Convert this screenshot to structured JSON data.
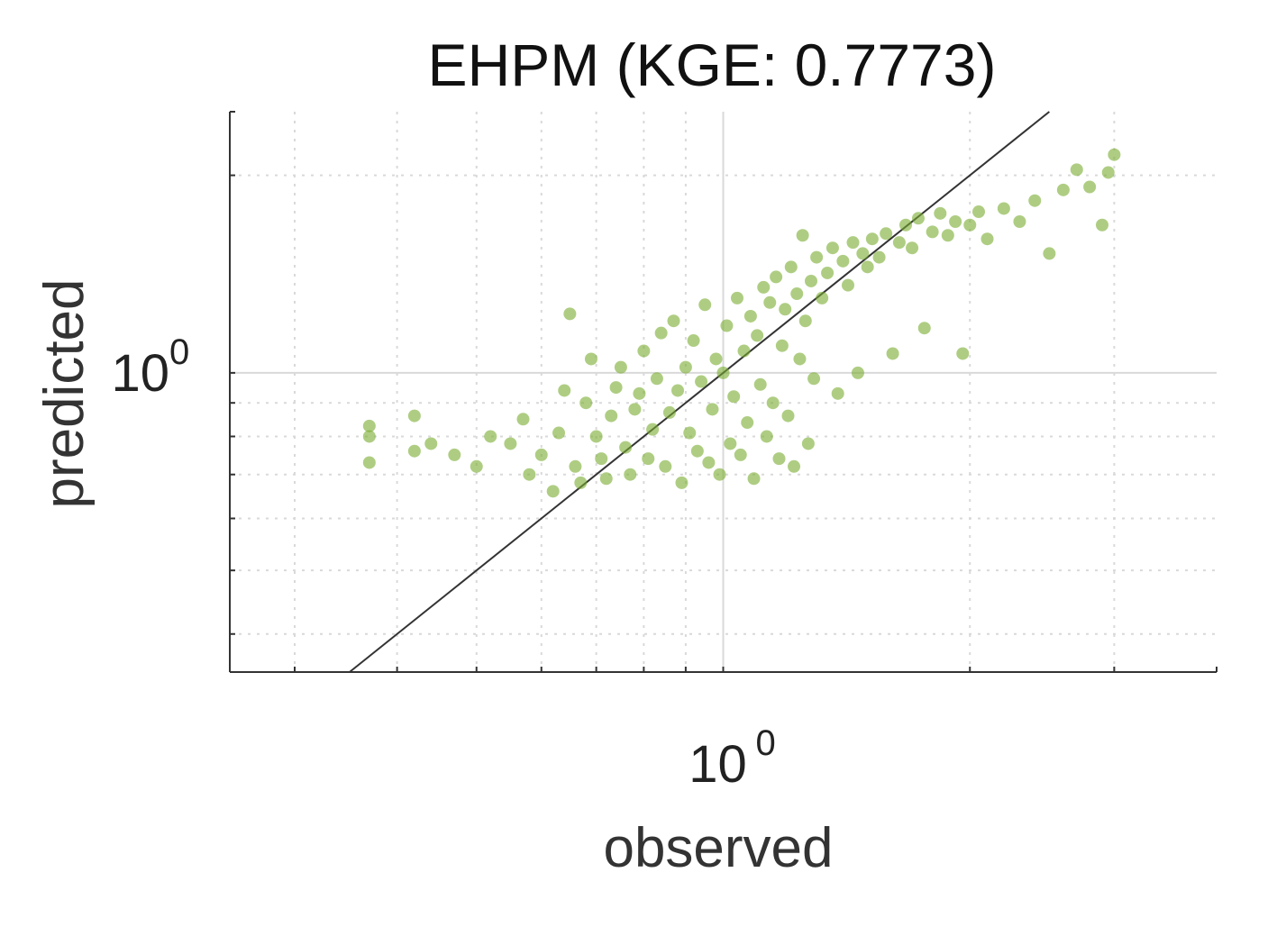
{
  "chart_data": {
    "type": "scatter",
    "title": "EHPM (KGE: 0.7773)",
    "xlabel": "observed",
    "ylabel": "predicted",
    "xscale": "log",
    "yscale": "log",
    "xlim": [
      0.25,
      4.0
    ],
    "ylim": [
      0.35,
      2.5
    ],
    "x_ticks": [
      {
        "base": "10",
        "exp": "0",
        "value": 1
      }
    ],
    "y_ticks": [
      {
        "base": "10",
        "exp": "0",
        "value": 1
      }
    ],
    "grid": true,
    "reference_line": "1:1",
    "colors": {
      "points": "#78ab2e",
      "line": "#333333",
      "grid": "#d9d9d9",
      "axis": "#333333"
    },
    "series": [
      {
        "values": [
          [
            0.37,
            0.83
          ],
          [
            0.37,
            0.8
          ],
          [
            0.37,
            0.73
          ],
          [
            0.42,
            0.86
          ],
          [
            0.42,
            0.76
          ],
          [
            0.44,
            0.78
          ],
          [
            0.47,
            0.75
          ],
          [
            0.5,
            0.72
          ],
          [
            0.52,
            0.8
          ],
          [
            0.55,
            0.78
          ],
          [
            0.57,
            0.85
          ],
          [
            0.58,
            0.7
          ],
          [
            0.6,
            0.75
          ],
          [
            0.62,
            0.66
          ],
          [
            0.63,
            0.81
          ],
          [
            0.64,
            0.94
          ],
          [
            0.65,
            1.23
          ],
          [
            0.66,
            0.72
          ],
          [
            0.67,
            0.68
          ],
          [
            0.68,
            0.9
          ],
          [
            0.69,
            1.05
          ],
          [
            0.7,
            0.8
          ],
          [
            0.71,
            0.74
          ],
          [
            0.72,
            0.69
          ],
          [
            0.73,
            0.86
          ],
          [
            0.74,
            0.95
          ],
          [
            0.75,
            1.02
          ],
          [
            0.76,
            0.77
          ],
          [
            0.77,
            0.7
          ],
          [
            0.78,
            0.88
          ],
          [
            0.79,
            0.93
          ],
          [
            0.8,
            1.08
          ],
          [
            0.81,
            0.74
          ],
          [
            0.82,
            0.82
          ],
          [
            0.83,
            0.98
          ],
          [
            0.84,
            1.15
          ],
          [
            0.85,
            0.72
          ],
          [
            0.86,
            0.87
          ],
          [
            0.87,
            1.2
          ],
          [
            0.88,
            0.94
          ],
          [
            0.89,
            0.68
          ],
          [
            0.9,
            1.02
          ],
          [
            0.91,
            0.81
          ],
          [
            0.92,
            1.12
          ],
          [
            0.93,
            0.76
          ],
          [
            0.94,
            0.97
          ],
          [
            0.95,
            1.27
          ],
          [
            0.96,
            0.73
          ],
          [
            0.97,
            0.88
          ],
          [
            0.98,
            1.05
          ],
          [
            0.99,
            0.7
          ],
          [
            1.0,
            1.0
          ],
          [
            1.01,
            1.18
          ],
          [
            1.02,
            0.78
          ],
          [
            1.03,
            0.92
          ],
          [
            1.04,
            1.3
          ],
          [
            1.05,
            0.75
          ],
          [
            1.06,
            1.08
          ],
          [
            1.07,
            0.84
          ],
          [
            1.08,
            1.22
          ],
          [
            1.09,
            0.69
          ],
          [
            1.1,
            1.14
          ],
          [
            1.11,
            0.96
          ],
          [
            1.12,
            1.35
          ],
          [
            1.13,
            0.8
          ],
          [
            1.14,
            1.28
          ],
          [
            1.15,
            0.9
          ],
          [
            1.16,
            1.4
          ],
          [
            1.17,
            0.74
          ],
          [
            1.18,
            1.1
          ],
          [
            1.19,
            1.25
          ],
          [
            1.2,
            0.86
          ],
          [
            1.21,
            1.45
          ],
          [
            1.22,
            0.72
          ],
          [
            1.23,
            1.32
          ],
          [
            1.24,
            1.05
          ],
          [
            1.25,
            1.62
          ],
          [
            1.26,
            1.2
          ],
          [
            1.27,
            0.78
          ],
          [
            1.28,
            1.38
          ],
          [
            1.29,
            0.98
          ],
          [
            1.3,
            1.5
          ],
          [
            1.32,
            1.3
          ],
          [
            1.34,
            1.42
          ],
          [
            1.36,
            1.55
          ],
          [
            1.38,
            0.93
          ],
          [
            1.4,
            1.48
          ],
          [
            1.42,
            1.36
          ],
          [
            1.44,
            1.58
          ],
          [
            1.46,
            1.0
          ],
          [
            1.48,
            1.52
          ],
          [
            1.5,
            1.45
          ],
          [
            1.52,
            1.6
          ],
          [
            1.55,
            1.5
          ],
          [
            1.58,
            1.63
          ],
          [
            1.61,
            1.07
          ],
          [
            1.64,
            1.58
          ],
          [
            1.67,
            1.68
          ],
          [
            1.7,
            1.55
          ],
          [
            1.73,
            1.72
          ],
          [
            1.76,
            1.17
          ],
          [
            1.8,
            1.64
          ],
          [
            1.84,
            1.75
          ],
          [
            1.88,
            1.62
          ],
          [
            1.92,
            1.7
          ],
          [
            1.96,
            1.07
          ],
          [
            2.0,
            1.68
          ],
          [
            2.05,
            1.76
          ],
          [
            2.1,
            1.6
          ],
          [
            2.2,
            1.78
          ],
          [
            2.3,
            1.7
          ],
          [
            2.4,
            1.83
          ],
          [
            2.5,
            1.52
          ],
          [
            2.6,
            1.9
          ],
          [
            2.7,
            2.04
          ],
          [
            2.8,
            1.92
          ],
          [
            2.9,
            1.68
          ],
          [
            2.95,
            2.02
          ],
          [
            3.0,
            2.15
          ]
        ]
      }
    ]
  }
}
